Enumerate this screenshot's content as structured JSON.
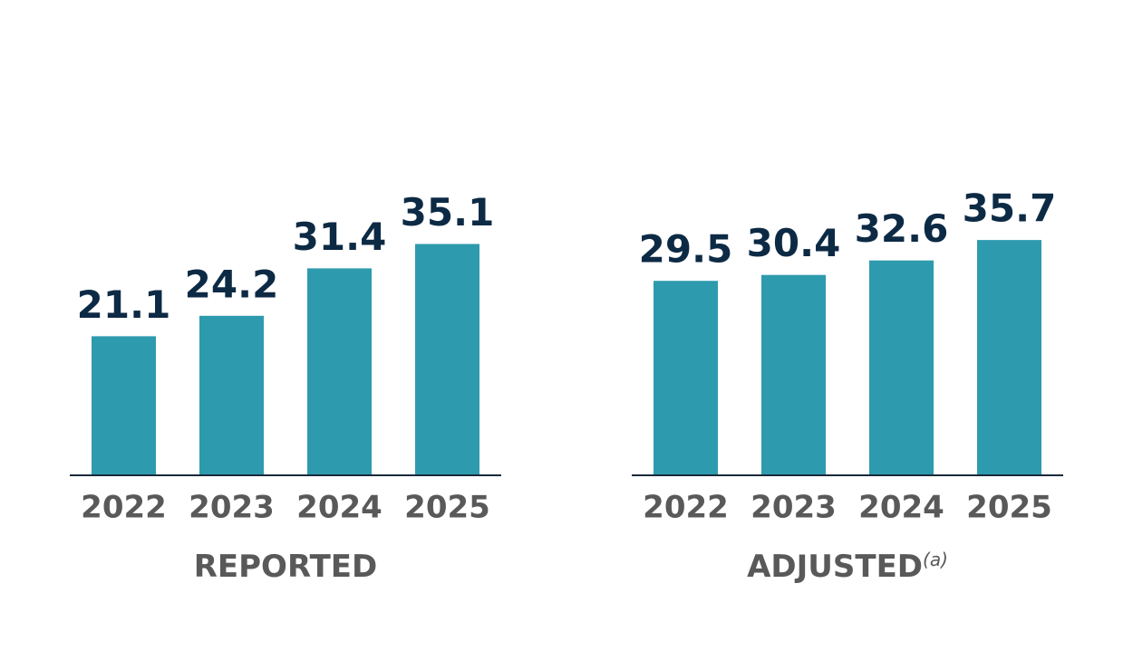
{
  "chart_data": [
    {
      "type": "bar",
      "categories": [
        "2022",
        "2023",
        "2024",
        "2025"
      ],
      "values": [
        21.1,
        24.2,
        31.4,
        35.1
      ],
      "color": "#2e9aae",
      "ylim": [
        0,
        50
      ],
      "xlabel": "REPORTED"
    },
    {
      "type": "bar",
      "categories": [
        "2022",
        "2023",
        "2024",
        "2025"
      ],
      "values": [
        29.5,
        30.4,
        32.6,
        35.7
      ],
      "color": "#2e9aae",
      "ylim": [
        0,
        50
      ],
      "xlabel": "ADJUSTED",
      "xlabel_note": "(a)"
    }
  ]
}
